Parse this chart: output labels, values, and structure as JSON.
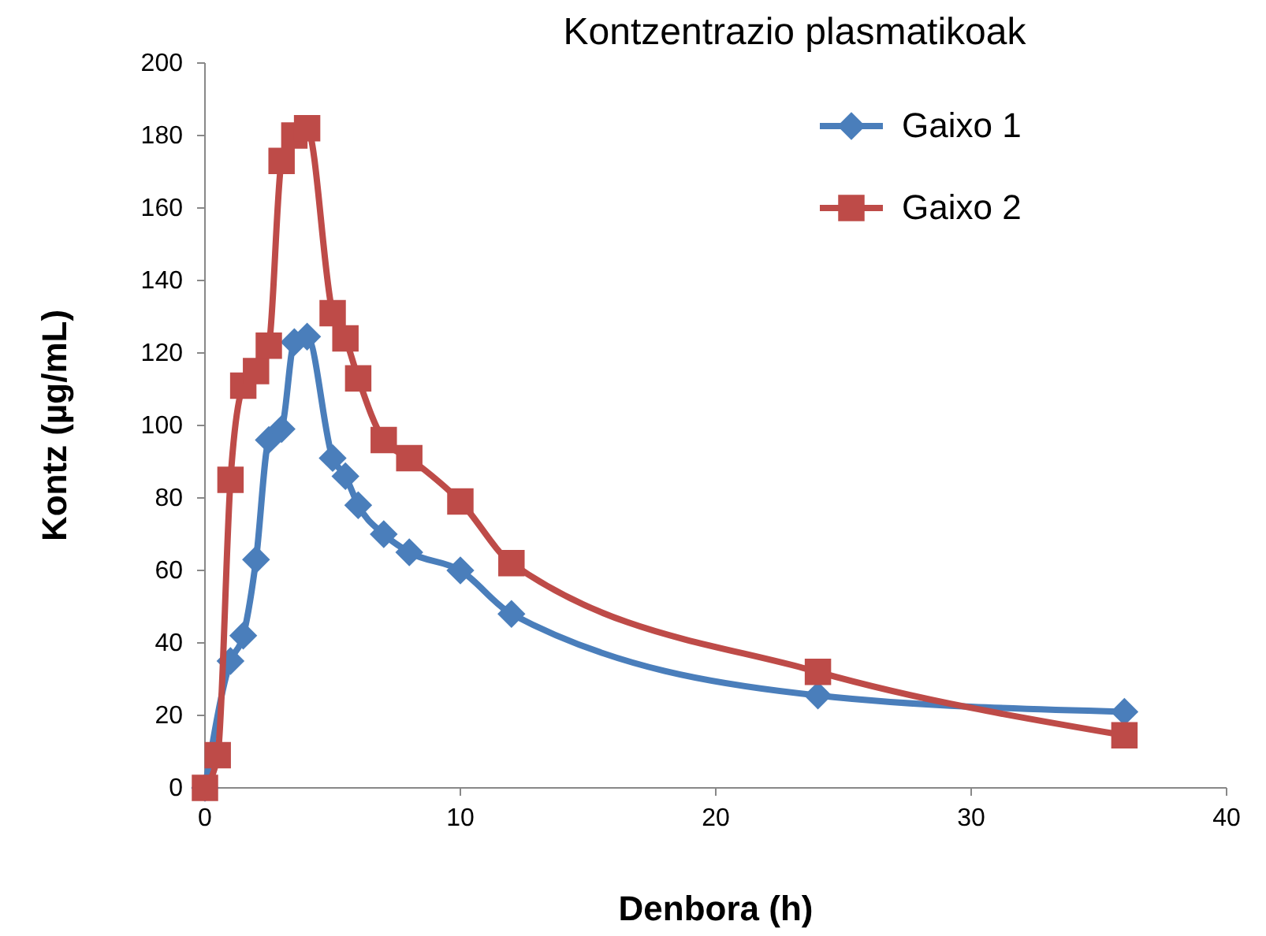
{
  "chart_data": {
    "type": "line",
    "title": "Kontzentrazio plasmatikoak",
    "xlabel": "Denbora (h)",
    "ylabel": "Kontz (µg/mL)",
    "xlim": [
      0,
      40
    ],
    "xticks": [
      0,
      10,
      20,
      30,
      40
    ],
    "ylim": [
      0,
      200
    ],
    "yticks": [
      0,
      20,
      40,
      60,
      80,
      100,
      120,
      140,
      160,
      180,
      200
    ],
    "grid": false,
    "legend": "top right",
    "series": [
      {
        "name": "Gaixo 1",
        "color": "#4a7ebb",
        "marker": "diamond",
        "x": [
          0,
          1,
          1.5,
          2,
          2.5,
          3,
          3.5,
          4,
          5,
          5.5,
          6,
          7,
          8,
          10,
          12,
          24,
          36
        ],
        "values": [
          0,
          35,
          42,
          63,
          96,
          99,
          123,
          124.5,
          91,
          86,
          78,
          70,
          65,
          60,
          48,
          25.5,
          21
        ]
      },
      {
        "name": "Gaixo 2",
        "color": "#be4b48",
        "marker": "square",
        "x": [
          0,
          0.5,
          1,
          1.5,
          2,
          2.5,
          3,
          3.5,
          4,
          5,
          5.5,
          6,
          7,
          8,
          10,
          12,
          24,
          36
        ],
        "values": [
          0,
          9,
          85,
          111,
          115,
          122,
          173,
          180,
          182,
          131,
          124,
          113,
          96,
          91,
          79,
          62,
          32,
          14.5
        ]
      }
    ]
  }
}
